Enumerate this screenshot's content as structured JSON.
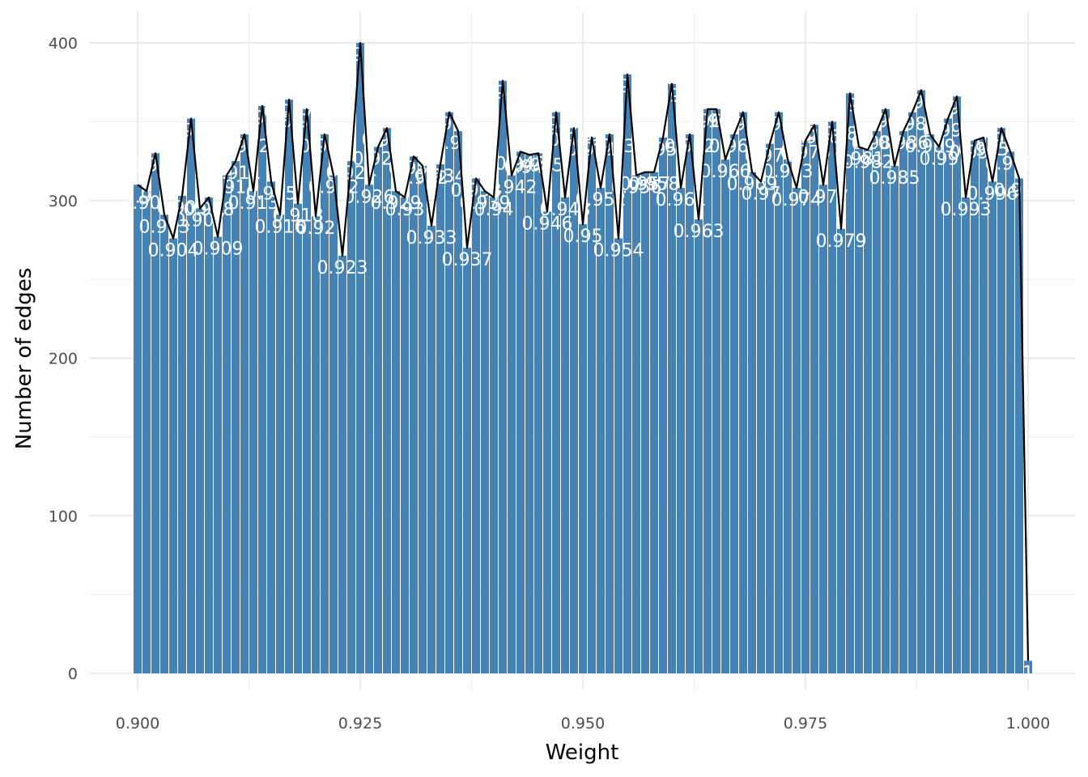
{
  "chart_data": {
    "type": "bar",
    "title": "",
    "xlabel": "Weight",
    "ylabel": "Number of edges",
    "xlim": [
      0.8955,
      1.0045
    ],
    "ylim": [
      -18,
      420
    ],
    "x_ticks": [
      0.9,
      0.925,
      0.95,
      0.975,
      1.0
    ],
    "x_tick_labels": [
      "0.900",
      "0.925",
      "0.950",
      "0.975",
      "1.000"
    ],
    "y_ticks": [
      0,
      100,
      200,
      300,
      400
    ],
    "y_tick_labels": [
      "0",
      "100",
      "200",
      "300",
      "400"
    ],
    "grid": true,
    "legend": "none",
    "colors": {
      "bar": "#4682B4",
      "line": "#000000",
      "grid": "#ebebeb",
      "label": "#ffffff"
    },
    "x": [
      0.9,
      0.901,
      0.902,
      0.903,
      0.904,
      0.905,
      0.906,
      0.907,
      0.908,
      0.909,
      0.91,
      0.911,
      0.912,
      0.913,
      0.914,
      0.915,
      0.916,
      0.917,
      0.918,
      0.919,
      0.92,
      0.921,
      0.922,
      0.923,
      0.924,
      0.925,
      0.926,
      0.927,
      0.928,
      0.929,
      0.93,
      0.931,
      0.932,
      0.933,
      0.934,
      0.935,
      0.936,
      0.937,
      0.938,
      0.939,
      0.94,
      0.941,
      0.942,
      0.943,
      0.944,
      0.945,
      0.946,
      0.947,
      0.948,
      0.949,
      0.95,
      0.951,
      0.952,
      0.953,
      0.954,
      0.955,
      0.956,
      0.957,
      0.958,
      0.959,
      0.96,
      0.961,
      0.962,
      0.963,
      0.964,
      0.965,
      0.966,
      0.967,
      0.968,
      0.969,
      0.97,
      0.971,
      0.972,
      0.973,
      0.974,
      0.975,
      0.976,
      0.977,
      0.978,
      0.979,
      0.98,
      0.981,
      0.982,
      0.983,
      0.984,
      0.985,
      0.986,
      0.987,
      0.988,
      0.989,
      0.99,
      0.991,
      0.992,
      0.993,
      0.994,
      0.995,
      0.996,
      0.997,
      0.998,
      0.999,
      1.0
    ],
    "values": [
      310,
      306,
      330,
      291,
      276,
      303,
      352,
      295,
      302,
      277,
      316,
      325,
      342,
      306,
      360,
      312,
      291,
      364,
      298,
      358,
      290,
      342,
      316,
      265,
      325,
      400,
      310,
      334,
      346,
      306,
      302,
      328,
      322,
      284,
      323,
      356,
      344,
      270,
      314,
      306,
      302,
      376,
      316,
      331,
      329,
      330,
      293,
      356,
      302,
      346,
      285,
      340,
      308,
      342,
      276,
      380,
      316,
      318,
      318,
      340,
      374,
      308,
      342,
      288,
      358,
      358,
      326,
      342,
      356,
      318,
      312,
      336,
      356,
      326,
      308,
      338,
      348,
      310,
      350,
      282,
      368,
      334,
      332,
      344,
      358,
      322,
      344,
      356,
      370,
      342,
      334,
      352,
      366,
      302,
      338,
      340,
      312,
      346,
      331,
      314,
      8
    ],
    "labels": [
      "0.9",
      "0.901",
      "0.902",
      "0.903",
      "0.904",
      "0.905",
      "0.906",
      "0.907",
      "0.908",
      "0.909",
      "0.91",
      "0.911",
      "0.912",
      "0.913",
      "0.914",
      "0.915",
      "0.916",
      "0.917",
      "0.918",
      "0.919",
      "0.92",
      "0.921",
      "0.922",
      "0.923",
      "0.924",
      "0.925",
      "0.926",
      "0.927",
      "0.928",
      "0.929",
      "0.93",
      "0.931",
      "0.932",
      "0.933",
      "0.934",
      "0.935",
      "0.936",
      "0.937",
      "0.938",
      "0.939",
      "0.94",
      "0.941",
      "0.942",
      "0.943",
      "0.944",
      "0.945",
      "0.946",
      "0.947",
      "0.948",
      "0.949",
      "0.95",
      "0.951",
      "0.952",
      "0.953",
      "0.954",
      "0.955",
      "0.956",
      "0.957",
      "0.958",
      "0.959",
      "0.96",
      "0.961",
      "0.962",
      "0.963",
      "0.964",
      "0.965",
      "0.966",
      "0.967",
      "0.968",
      "0.969",
      "0.97",
      "0.971",
      "0.972",
      "0.973",
      "0.974",
      "0.975",
      "0.976",
      "0.977",
      "0.978",
      "0.979",
      "0.98",
      "0.981",
      "0.982",
      "0.983",
      "0.984",
      "0.985",
      "0.986",
      "0.987",
      "0.988",
      "0.989",
      "0.99",
      "0.991",
      "0.992",
      "0.993",
      "0.994",
      "0.995",
      "0.996",
      "0.997",
      "0.998",
      "0.999",
      "1"
    ]
  }
}
